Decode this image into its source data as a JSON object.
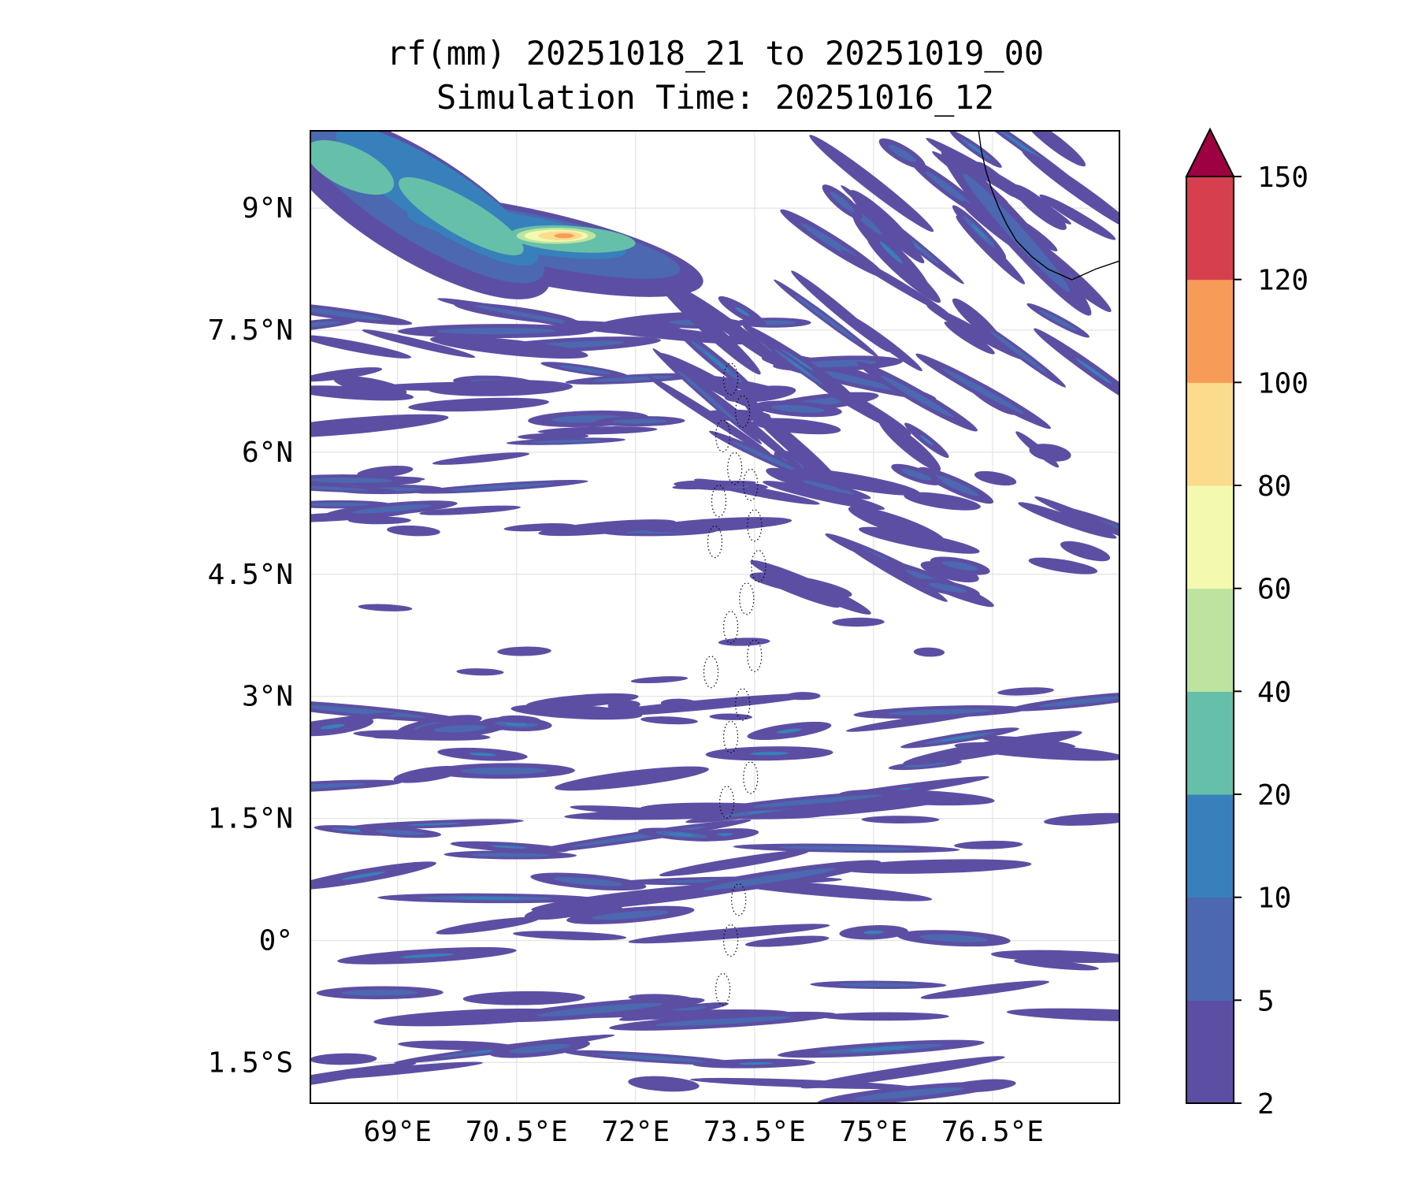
{
  "chart_data": {
    "type": "filled-contour-map",
    "title": "rf(mm) 20251018_21 to 20251019_00",
    "subtitle": "Simulation Time: 20251016_12",
    "variable": "rf",
    "units": "mm",
    "valid_period": "20251018_21 to 20251019_00",
    "simulation_time": "20251016_12",
    "xlim": [
      67.9,
      78.1
    ],
    "ylim": [
      -2.0,
      9.95
    ],
    "x_ticks": [
      {
        "value": 69.0,
        "label": "69°E"
      },
      {
        "value": 70.5,
        "label": "70.5°E"
      },
      {
        "value": 72.0,
        "label": "72°E"
      },
      {
        "value": 73.5,
        "label": "73.5°E"
      },
      {
        "value": 75.0,
        "label": "75°E"
      },
      {
        "value": 76.5,
        "label": "76.5°E"
      }
    ],
    "y_ticks": [
      {
        "value": 9.0,
        "label": "9°N"
      },
      {
        "value": 7.5,
        "label": "7.5°N"
      },
      {
        "value": 6.0,
        "label": "6°N"
      },
      {
        "value": 4.5,
        "label": "4.5°N"
      },
      {
        "value": 3.0,
        "label": "3°N"
      },
      {
        "value": 1.5,
        "label": "1.5°N"
      },
      {
        "value": 0.0,
        "label": "0°"
      },
      {
        "value": -1.5,
        "label": "1.5°S"
      }
    ],
    "grid": true,
    "colorbar": {
      "levels": [
        2,
        5,
        10,
        20,
        40,
        60,
        80,
        100,
        120,
        150
      ],
      "level_labels": [
        "2",
        "5",
        "10",
        "20",
        "40",
        "60",
        "80",
        "100",
        "120",
        "150"
      ],
      "colors": [
        "#5c4fa3",
        "#4b68b0",
        "#3880bb",
        "#66bfa8",
        "#bce4a0",
        "#f3f9ae",
        "#fbdc8c",
        "#f79c58",
        "#d6404e"
      ],
      "extend_color": "#9e0142",
      "extend": "max"
    },
    "rain_bands": [
      {
        "lon": [
          67.9,
          72.8
        ],
        "lat": [
          7.9,
          9.75
        ],
        "peak_mm": 30
      },
      {
        "lon": [
          70.3,
          71.3
        ],
        "lat": [
          8.55,
          8.7
        ],
        "peak_mm": 100
      },
      {
        "lon": [
          67.9,
          74.5
        ],
        "lat": [
          6.4,
          7.7
        ],
        "peak_mm": 12
      },
      {
        "lon": [
          74.7,
          77.7
        ],
        "lat": [
          8.1,
          10.0
        ],
        "peak_mm": 18
      },
      {
        "lon": [
          73.8,
          78.1
        ],
        "lat": [
          4.3,
          5.9
        ],
        "peak_mm": 8
      },
      {
        "lon": [
          67.9,
          73.0
        ],
        "lat": [
          5.0,
          6.4
        ],
        "peak_mm": 8
      },
      {
        "lon": [
          67.9,
          78.1
        ],
        "lat": [
          -2.0,
          3.0
        ],
        "peak_mm": 15
      }
    ],
    "coastlines": [
      "India southwest coast (Kerala)",
      "Maldives atolls"
    ]
  }
}
